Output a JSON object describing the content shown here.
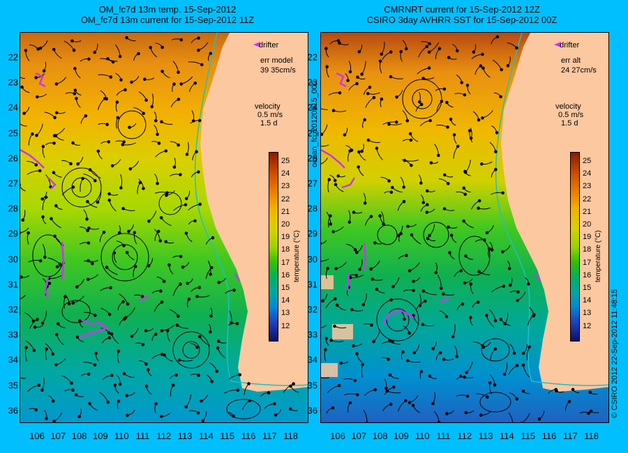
{
  "left_panel": {
    "title_line1": "OM_fc7d 13m temp. 15-Sep-2012",
    "title_line2": "OM_fc7d 13m current for 15-Sep-2012 11Z",
    "legend_drifter": "drifter",
    "err_label": "err model",
    "err_value": "39 35cm/s",
    "velocity_label": "velocity",
    "velocity_scale": "0.5 m/s",
    "velocity_time": "1.5 d"
  },
  "right_panel": {
    "title_line1": "CMRNRT current for 15-Sep-2012 12Z",
    "title_line2": "CSIRO 3day AVHRR SST for 15-Sep-2012 00Z",
    "legend_drifter": "drifter",
    "err_label": "err alt",
    "err_value": "24 27cm/s",
    "velocity_label": "velocity",
    "velocity_scale": "0.5 m/s",
    "velocity_time": "1.5 d"
  },
  "colorbar": {
    "title": "temperature (°C)",
    "ticks": [
      "25",
      "24",
      "23",
      "22",
      "21",
      "20",
      "19",
      "18",
      "17",
      "16",
      "15",
      "14",
      "13",
      "12"
    ]
  },
  "axes": {
    "y_ticks": [
      "22",
      "23",
      "24",
      "25",
      "26",
      "27",
      "28",
      "29",
      "30",
      "31",
      "32",
      "33",
      "34",
      "35",
      "36"
    ],
    "x_ticks": [
      "106",
      "107",
      "108",
      "109",
      "110",
      "111",
      "112",
      "113",
      "114",
      "115",
      "116",
      "117",
      "118"
    ]
  },
  "side_labels": {
    "product_id": "ocean_fc_20120915_000",
    "credit": "© CSIRO 2012   22-Sep-2012 11:48:15"
  },
  "colors": {
    "background": "#00bfff",
    "land": "#fcc8a0",
    "drifter": "#cc33ff",
    "shelf_contour": "#20c0c0"
  }
}
